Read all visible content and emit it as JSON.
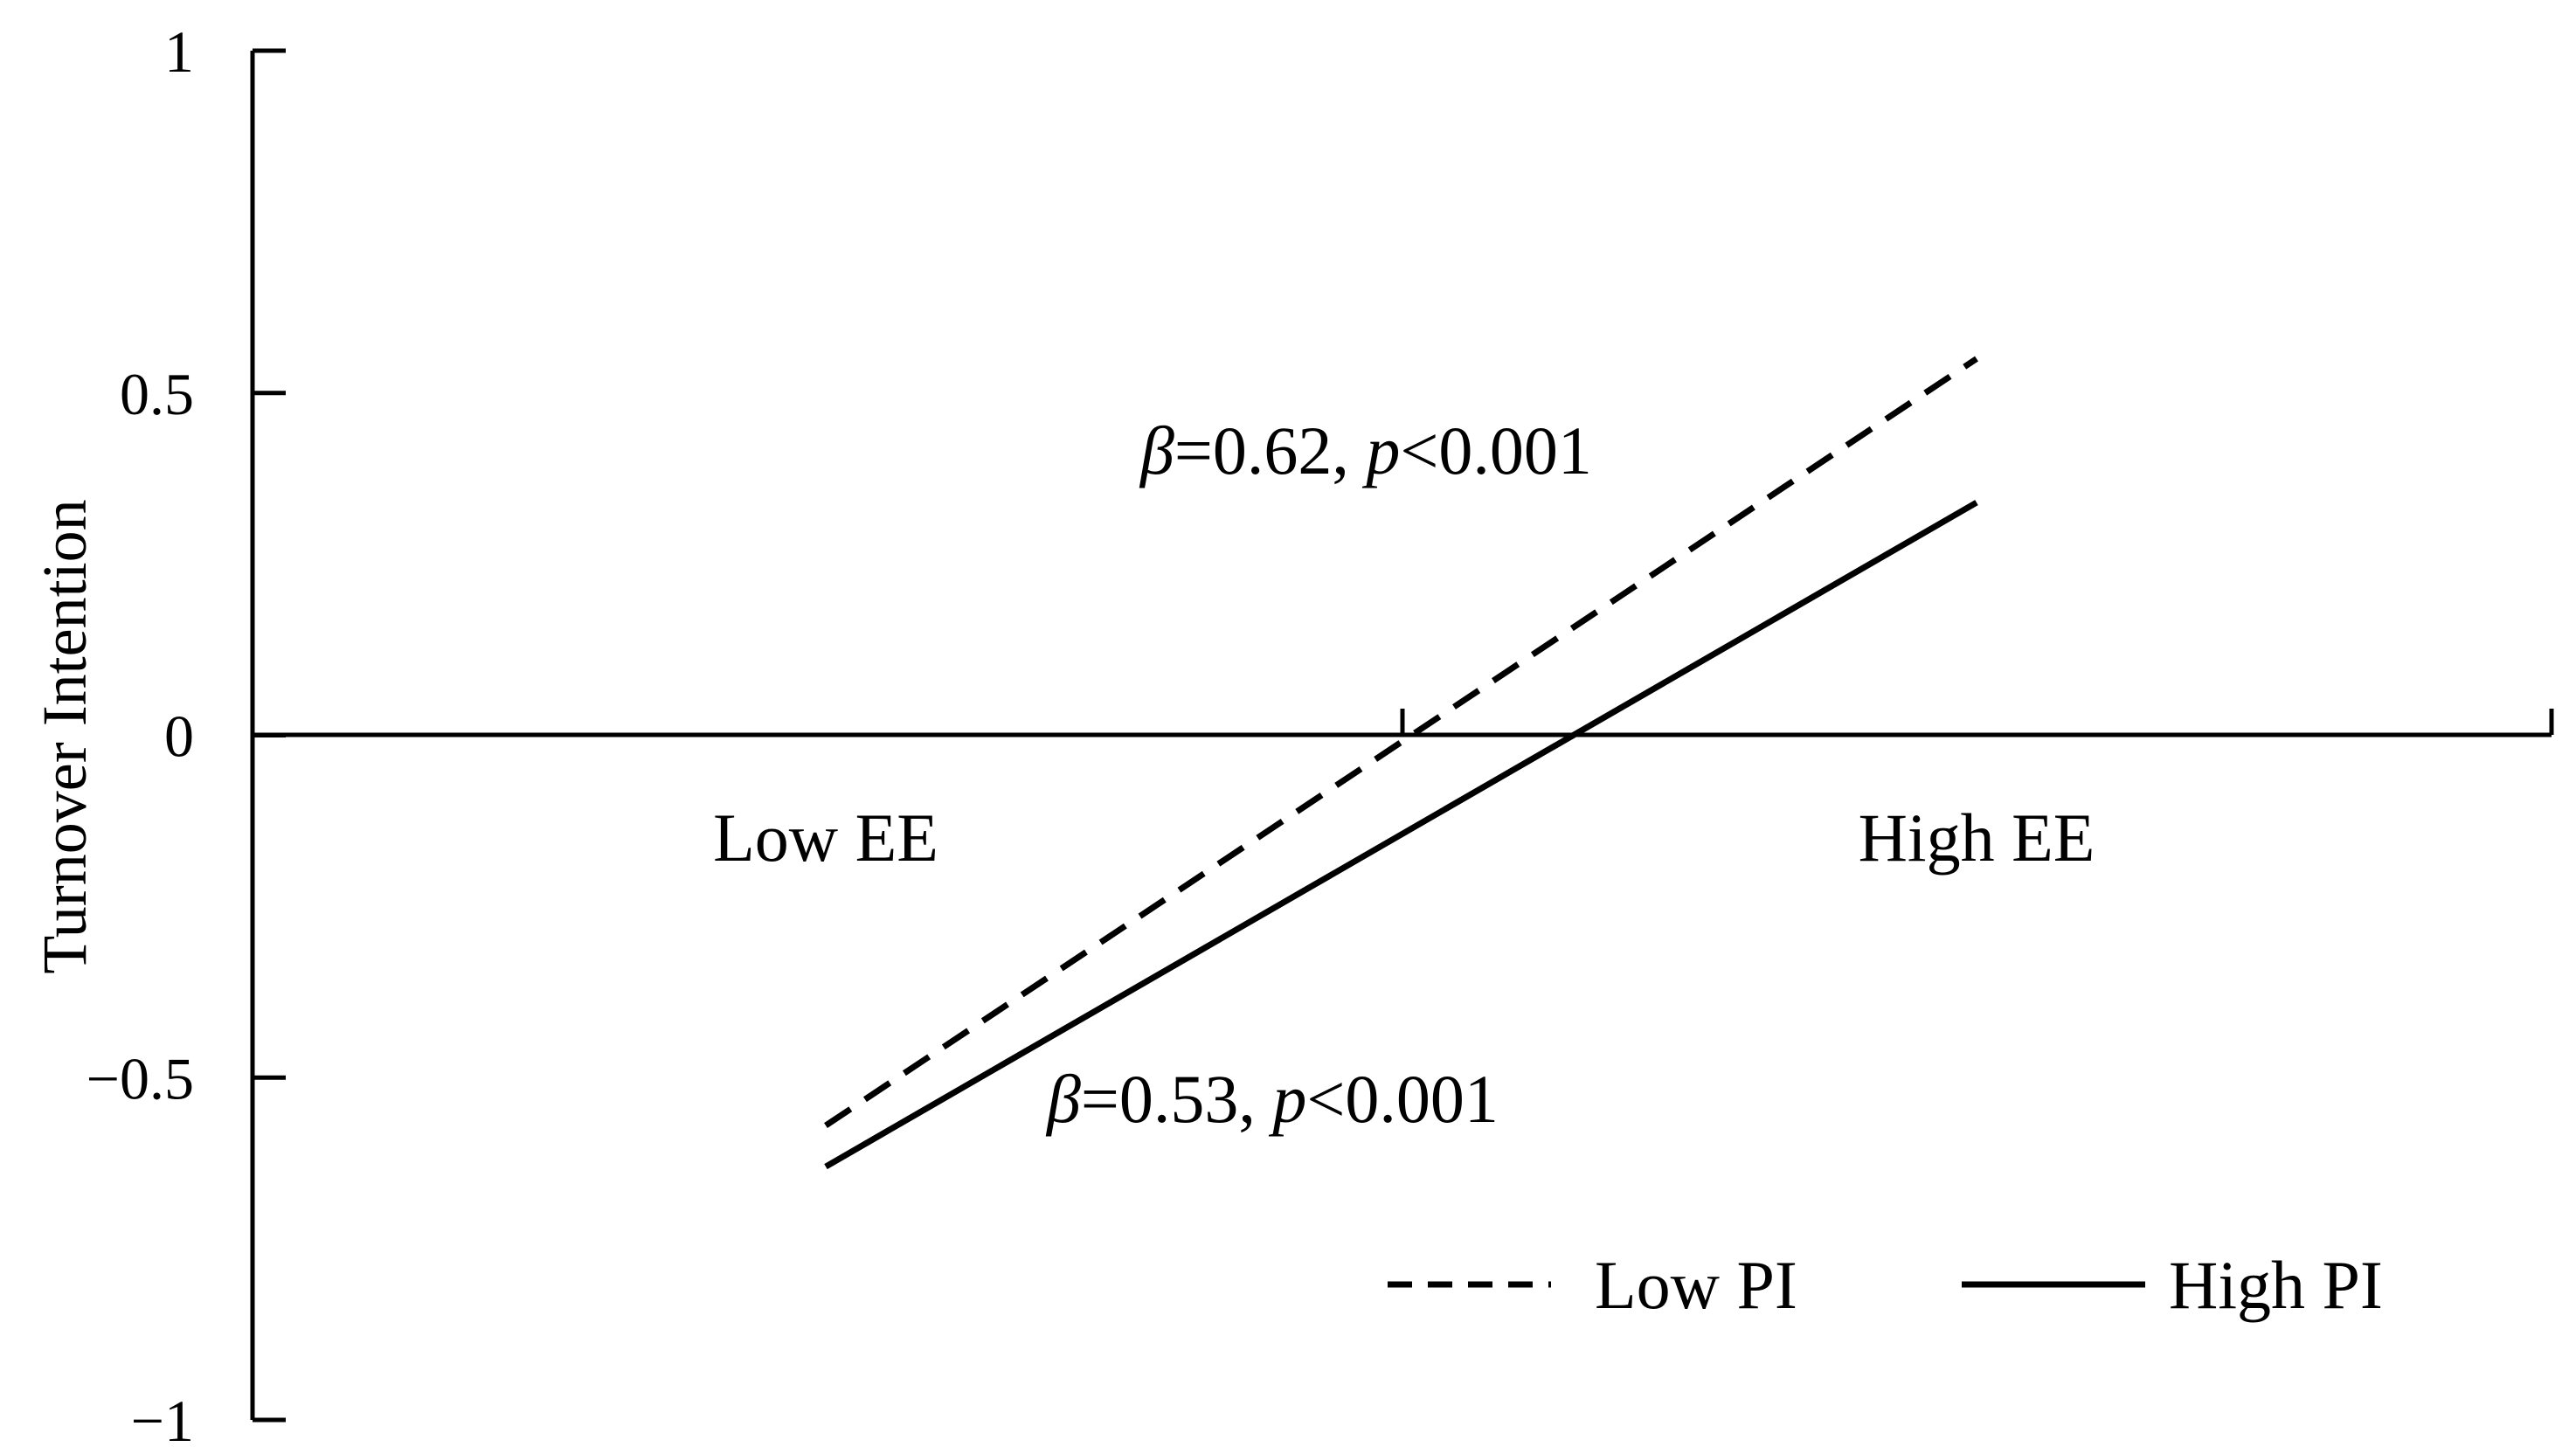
{
  "chart_data": {
    "type": "line",
    "title": "",
    "xlabel": "",
    "ylabel": "Turnover Intention",
    "categories": [
      "Low EE",
      "High EE"
    ],
    "ylim": [
      -1,
      1
    ],
    "yticks": [
      1,
      0.5,
      0,
      -0.5,
      -1
    ],
    "ytick_labels": [
      "1",
      "0.5",
      "0",
      "−0.5",
      "−1"
    ],
    "series": [
      {
        "name": "Low PI",
        "values": [
          -0.57,
          0.55
        ],
        "style": "dashed",
        "color": "#000000",
        "annotation": {
          "beta_symbol": "β",
          "beta_text": "=0.62, ",
          "p_symbol": "p",
          "p_text": "<0.001"
        }
      },
      {
        "name": "High PI",
        "values": [
          -0.63,
          0.34
        ],
        "style": "solid",
        "color": "#000000",
        "annotation": {
          "beta_symbol": "β",
          "beta_text": "=0.53, ",
          "p_symbol": "p",
          "p_text": "<0.001"
        }
      }
    ],
    "grid": false,
    "legend": "bottom-right"
  }
}
